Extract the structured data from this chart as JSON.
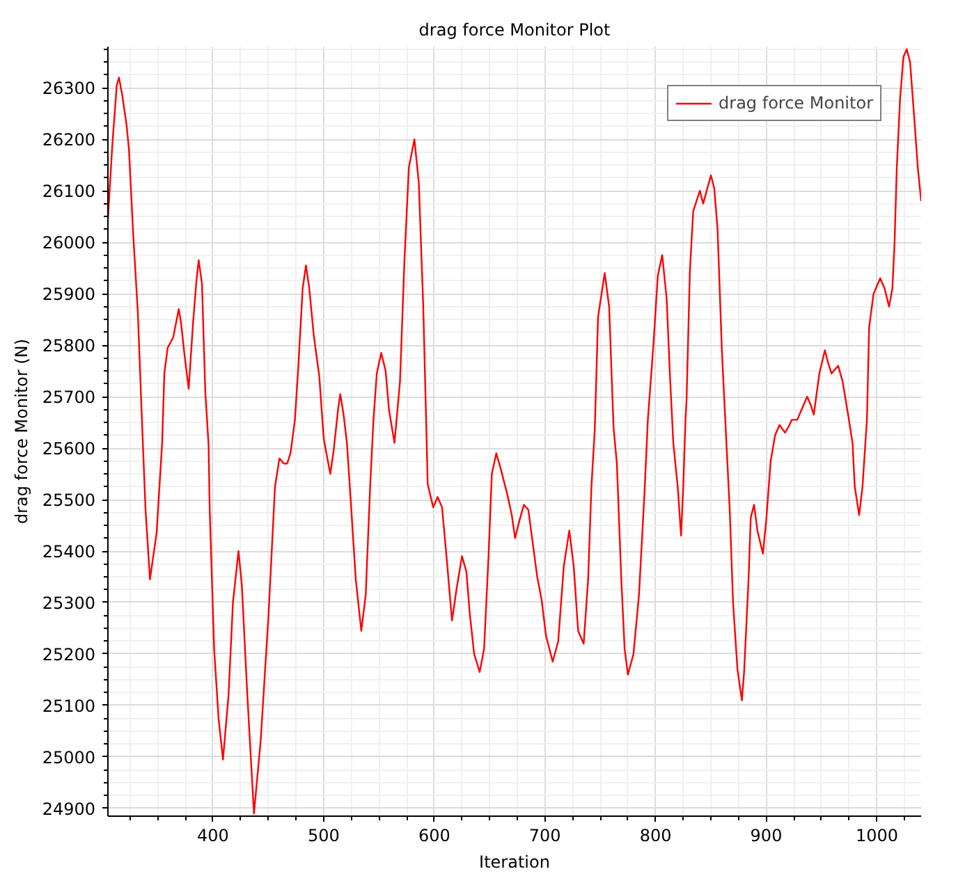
{
  "chart_data": {
    "type": "line",
    "title": "drag force Monitor Plot",
    "xlabel": "Iteration",
    "ylabel": "drag force Monitor (N)",
    "xlim": [
      305,
      1040
    ],
    "ylim": [
      24885,
      26380
    ],
    "xticks": [
      {
        "value": 325,
        "label": null
      },
      {
        "value": 350,
        "label": null
      },
      {
        "value": 375,
        "label": null
      },
      400,
      {
        "value": 425,
        "label": null
      },
      {
        "value": 450,
        "label": null
      },
      {
        "value": 475,
        "label": null
      },
      500,
      {
        "value": 525,
        "label": null
      },
      {
        "value": 550,
        "label": null
      },
      {
        "value": 575,
        "label": null
      },
      600,
      {
        "value": 625,
        "label": null
      },
      {
        "value": 650,
        "label": null
      },
      {
        "value": 675,
        "label": null
      },
      700,
      {
        "value": 725,
        "label": null
      },
      {
        "value": 750,
        "label": null
      },
      {
        "value": 775,
        "label": null
      },
      800,
      {
        "value": 825,
        "label": null
      },
      {
        "value": 850,
        "label": null
      },
      {
        "value": 875,
        "label": null
      },
      900,
      {
        "value": 925,
        "label": null
      },
      {
        "value": 950,
        "label": null
      },
      {
        "value": 975,
        "label": null
      },
      1000,
      {
        "value": 1025,
        "label": null
      }
    ],
    "yticks": [
      24900,
      {
        "value": 24925,
        "label": null
      },
      {
        "value": 24950,
        "label": null
      },
      {
        "value": 24975,
        "label": null
      },
      25000,
      {
        "value": 25025,
        "label": null
      },
      {
        "value": 25050,
        "label": null
      },
      {
        "value": 25075,
        "label": null
      },
      25100,
      {
        "value": 25125,
        "label": null
      },
      {
        "value": 25150,
        "label": null
      },
      {
        "value": 25175,
        "label": null
      },
      25200,
      {
        "value": 25225,
        "label": null
      },
      {
        "value": 25250,
        "label": null
      },
      {
        "value": 25275,
        "label": null
      },
      25300,
      {
        "value": 25325,
        "label": null
      },
      {
        "value": 25350,
        "label": null
      },
      {
        "value": 25375,
        "label": null
      },
      25400,
      {
        "value": 25425,
        "label": null
      },
      {
        "value": 25450,
        "label": null
      },
      {
        "value": 25475,
        "label": null
      },
      25500,
      {
        "value": 25525,
        "label": null
      },
      {
        "value": 25550,
        "label": null
      },
      {
        "value": 25575,
        "label": null
      },
      25600,
      {
        "value": 25625,
        "label": null
      },
      {
        "value": 25650,
        "label": null
      },
      {
        "value": 25675,
        "label": null
      },
      25700,
      {
        "value": 25725,
        "label": null
      },
      {
        "value": 25750,
        "label": null
      },
      {
        "value": 25775,
        "label": null
      },
      25800,
      {
        "value": 25825,
        "label": null
      },
      {
        "value": 25850,
        "label": null
      },
      {
        "value": 25875,
        "label": null
      },
      25900,
      {
        "value": 25925,
        "label": null
      },
      {
        "value": 25950,
        "label": null
      },
      {
        "value": 25975,
        "label": null
      },
      26000,
      {
        "value": 26025,
        "label": null
      },
      {
        "value": 26050,
        "label": null
      },
      {
        "value": 26075,
        "label": null
      },
      26100,
      {
        "value": 26125,
        "label": null
      },
      {
        "value": 26150,
        "label": null
      },
      {
        "value": 26175,
        "label": null
      },
      26200,
      {
        "value": 26225,
        "label": null
      },
      {
        "value": 26250,
        "label": null
      },
      {
        "value": 26275,
        "label": null
      },
      26300,
      {
        "value": 26325,
        "label": null
      },
      {
        "value": 26350,
        "label": null
      },
      {
        "value": 26375,
        "label": null
      }
    ],
    "grid": true,
    "legend": "top right",
    "line_style": "solid",
    "series": [
      {
        "name": "drag force Monitor",
        "color": "#ff0000",
        "x": [
          305,
          309,
          313,
          315,
          318,
          322,
          324,
          328,
          332,
          336,
          339,
          343,
          349,
          354,
          356,
          359,
          364,
          369,
          371,
          374,
          378,
          382,
          385,
          387,
          390,
          393,
          396,
          397,
          401,
          405,
          409,
          414,
          418,
          423,
          426,
          431,
          437,
          443,
          450,
          456,
          460,
          464,
          467,
          470,
          474,
          477,
          481,
          484,
          487,
          491,
          496,
          500,
          502,
          506,
          509,
          513,
          515,
          518,
          521,
          525,
          529,
          534,
          538,
          542,
          545,
          548,
          552,
          556,
          559,
          564,
          569,
          573,
          577,
          582,
          586,
          590,
          593,
          594,
          599,
          603,
          607,
          611,
          616,
          620,
          625,
          629,
          632,
          636,
          641,
          645,
          649,
          652,
          656,
          660,
          666,
          670,
          673,
          677,
          681,
          685,
          689,
          693,
          697,
          701,
          707,
          712,
          717,
          722,
          726,
          730,
          735,
          739,
          742,
          745,
          748,
          754,
          758,
          762,
          765,
          769,
          772,
          775,
          780,
          785,
          790,
          793,
          798,
          802,
          806,
          810,
          813,
          816,
          820,
          823,
          825,
          827,
          828,
          831,
          834,
          840,
          843,
          850,
          853,
          856,
          860,
          864,
          867,
          870,
          874,
          878,
          880,
          884,
          886,
          889,
          892,
          897,
          900,
          904,
          908,
          912,
          917,
          921,
          923,
          928,
          932,
          937,
          940,
          943,
          948,
          953,
          956,
          959,
          965,
          969,
          974,
          978,
          980,
          984,
          987,
          991,
          993,
          997,
          1003,
          1007,
          1011,
          1014,
          1016,
          1018,
          1021,
          1024,
          1027,
          1030,
          1034,
          1037,
          1040
        ],
        "values": [
          26045,
          26190,
          26305,
          26320,
          26285,
          26225,
          26180,
          26010,
          25865,
          25640,
          25480,
          25345,
          25435,
          25610,
          25745,
          25795,
          25815,
          25870,
          25845,
          25785,
          25715,
          25845,
          25925,
          25965,
          25920,
          25710,
          25605,
          25480,
          25210,
          25075,
          24995,
          25120,
          25300,
          25400,
          25335,
          25120,
          24890,
          25030,
          25270,
          25525,
          25580,
          25570,
          25570,
          25590,
          25655,
          25755,
          25910,
          25955,
          25910,
          25820,
          25740,
          25620,
          25595,
          25550,
          25595,
          25675,
          25705,
          25665,
          25610,
          25480,
          25345,
          25245,
          25315,
          25525,
          25655,
          25745,
          25785,
          25750,
          25675,
          25610,
          25730,
          25965,
          26145,
          26200,
          26115,
          25875,
          25620,
          25530,
          25485,
          25505,
          25485,
          25390,
          25265,
          25325,
          25390,
          25360,
          25280,
          25200,
          25165,
          25210,
          25390,
          25550,
          25590,
          25560,
          25510,
          25470,
          25425,
          25460,
          25490,
          25480,
          25415,
          25350,
          25305,
          25235,
          25185,
          25225,
          25370,
          25440,
          25370,
          25245,
          25220,
          25345,
          25525,
          25635,
          25855,
          25940,
          25875,
          25640,
          25570,
          25345,
          25210,
          25160,
          25200,
          25315,
          25515,
          25655,
          25800,
          25935,
          25975,
          25890,
          25740,
          25610,
          25525,
          25430,
          25525,
          25655,
          25695,
          25945,
          26060,
          26100,
          26075,
          26130,
          26105,
          26025,
          25785,
          25610,
          25480,
          25300,
          25170,
          25110,
          25165,
          25345,
          25465,
          25490,
          25440,
          25395,
          25460,
          25575,
          25625,
          25645,
          25630,
          25645,
          25655,
          25655,
          25675,
          25700,
          25685,
          25665,
          25745,
          25790,
          25765,
          25745,
          25760,
          25730,
          25665,
          25610,
          25525,
          25470,
          25525,
          25655,
          25835,
          25900,
          25930,
          25910,
          25875,
          25910,
          26000,
          26145,
          26280,
          26360,
          26375,
          26350,
          26235,
          26145,
          26080
        ]
      }
    ]
  }
}
